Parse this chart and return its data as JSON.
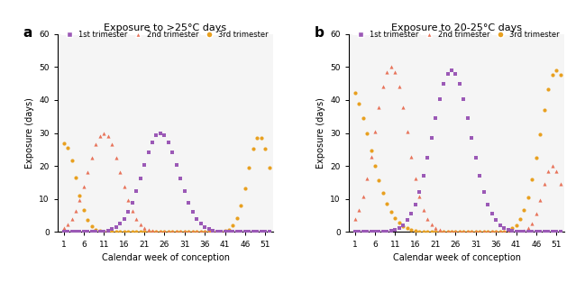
{
  "title_a": "Exposure to >25°C days",
  "title_b": "Exposure to 20-25°C days",
  "xlabel": "Calendar week of conception",
  "ylabel": "Exposure (days)",
  "ylim": [
    0,
    60
  ],
  "yticks": [
    0,
    10,
    20,
    30,
    40,
    50,
    60
  ],
  "xticks": [
    1,
    6,
    11,
    16,
    21,
    26,
    31,
    36,
    41,
    46,
    51
  ],
  "color_1st": "#9B59B6",
  "color_2nd": "#E8735A",
  "color_3rd": "#E8A020",
  "label_1st": "1st trimester",
  "label_2nd": "2nd trimester",
  "label_3rd": "3rd trimester",
  "panel_a_label": "a",
  "panel_b_label": "b",
  "bg_color": "#F5F5F5"
}
